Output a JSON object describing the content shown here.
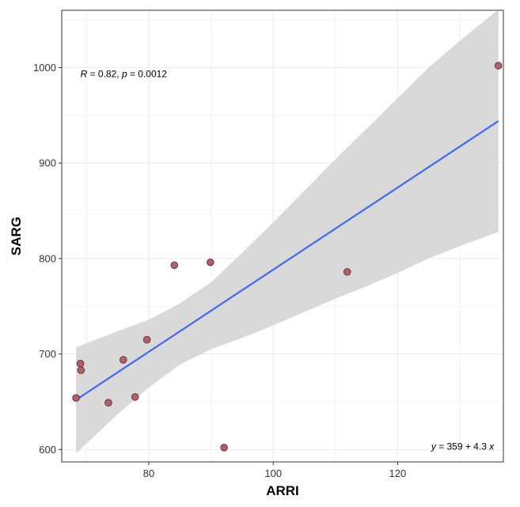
{
  "chart_data": {
    "type": "scatter",
    "title": "",
    "xlabel": "ARRI",
    "ylabel": "SARG",
    "xlim": [
      66,
      137
    ],
    "ylim": [
      587,
      1060
    ],
    "x_ticks": [
      80,
      100,
      120
    ],
    "x_tick_labels": [
      "80",
      "100",
      "120"
    ],
    "y_ticks": [
      600,
      700,
      800,
      900,
      1000
    ],
    "y_tick_labels": [
      "600",
      "700",
      "800",
      "900",
      "1000"
    ],
    "grid": true,
    "legend": "none",
    "points": [
      {
        "x": 68.3,
        "y": 654
      },
      {
        "x": 69.0,
        "y": 690
      },
      {
        "x": 69.1,
        "y": 683
      },
      {
        "x": 73.5,
        "y": 649
      },
      {
        "x": 75.9,
        "y": 694
      },
      {
        "x": 77.8,
        "y": 655
      },
      {
        "x": 79.7,
        "y": 715
      },
      {
        "x": 84.1,
        "y": 793
      },
      {
        "x": 89.9,
        "y": 796
      },
      {
        "x": 92.1,
        "y": 602
      },
      {
        "x": 111.9,
        "y": 786
      },
      {
        "x": 136.2,
        "y": 1002
      }
    ],
    "regression": {
      "x_range": [
        68.3,
        136.2
      ],
      "line_y": [
        652,
        944
      ],
      "ci_x": [
        68.3,
        75,
        80,
        85,
        90,
        95,
        100,
        105,
        110,
        115,
        120,
        125,
        130,
        136.2
      ],
      "ci_upper": [
        707,
        724,
        736,
        753,
        775,
        806,
        838,
        871,
        904,
        936,
        968,
        1000,
        1028,
        1061
      ],
      "ci_lower": [
        596,
        637,
        665,
        689,
        705,
        717,
        730,
        744,
        758,
        771,
        785,
        800,
        813,
        828
      ]
    },
    "annotations": {
      "stat_R": "R",
      "stat_R_rest": " = 0.82, ",
      "stat_p": "p",
      "stat_p_rest": " = 0.0012",
      "eq_y": "y",
      "eq_mid": " = 359 + 4.3 ",
      "eq_x": "x",
      "annot_stat_x": 69.0,
      "annot_stat_y": 990,
      "annot_eq_x": 135.5,
      "annot_eq_y": 600
    },
    "colors": {
      "band": "#d9d9d9",
      "line": "#3f69f0",
      "point_fill": "#b0616c",
      "point_stroke": "#5a2a30",
      "grid": "#ebebeb",
      "panel_border": "#333333"
    }
  }
}
